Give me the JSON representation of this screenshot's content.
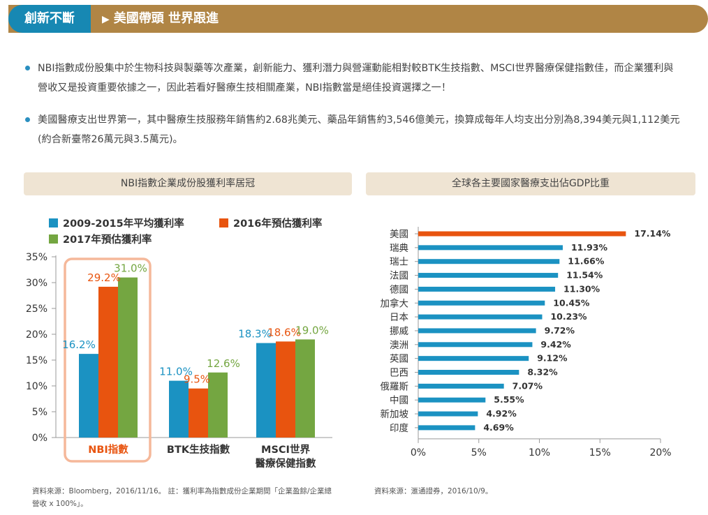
{
  "banner": {
    "tag": "創新不斷",
    "arrow": "▶",
    "title": "美國帶頭 世界跟進"
  },
  "bullets": [
    "NBI指數成份股集中於生物科技與製藥等次產業，創新能力、獲利潛力與營運動能相對較BTK生技指數、MSCI世界醫療保健指數佳，而企業獲利與營收又是投資重要依據之一，因此若看好醫療生技相關產業，NBI指數當是絕佳投資選擇之一！",
    "美國醫療支出世界第一，其中醫療生技服務年銷售約2.68兆美元、藥品年銷售約3,546億美元，換算成每年人均支出分別為8,394美元與1,112美元(約合新臺幣26萬元與3.5萬元)。"
  ],
  "left_section_title": "NBI指數企業成份股獲利率居冠",
  "right_section_title": "全球各主要國家醫療支出佔GDP比重",
  "left_source": "資料來源：Bloomberg，2016/11/16。 註：獲利率為指數成份企業期間「企業盈餘/企業總營收 x 100%」。",
  "right_source": "資料來源：滙通證券，2016/10/9。",
  "chart_data": [
    {
      "type": "bar",
      "categories": [
        "NBI指數",
        "BTK生技指數",
        "MSCI世界醫療保健指數"
      ],
      "category_lines": [
        [
          "NBI指數"
        ],
        [
          "BTK生技指數"
        ],
        [
          "MSCI世界",
          "醫療保健指數"
        ]
      ],
      "series": [
        {
          "name": "2009-2015年平均獲利率",
          "values": [
            16.2,
            11.0,
            18.3
          ],
          "labels": [
            "16.2%",
            "11.0%",
            "18.3%"
          ],
          "color": "#1b92c2"
        },
        {
          "name": "2016年預估獲利率",
          "values": [
            29.2,
            9.5,
            18.6
          ],
          "labels": [
            "29.2%",
            "9.5%",
            "18.6%"
          ],
          "color": "#e8540f"
        },
        {
          "name": "2017年預估獲利率",
          "values": [
            31.0,
            12.6,
            19.0
          ],
          "labels": [
            "31.0%",
            "12.6%",
            "19.0%"
          ],
          "color": "#74a641"
        }
      ],
      "ylim": [
        0,
        35
      ],
      "yticks": [
        "0%",
        "5%",
        "10%",
        "15%",
        "20%",
        "25%",
        "30%",
        "35%"
      ],
      "highlight_category": "NBI指數",
      "highlight_color": "#f5b89a",
      "legend_position": "top-left"
    },
    {
      "type": "bar",
      "orientation": "horizontal",
      "categories": [
        "美國",
        "瑞典",
        "瑞士",
        "法國",
        "德國",
        "加拿大",
        "日本",
        "挪威",
        "澳洲",
        "英國",
        "巴西",
        "俄羅斯",
        "中國",
        "新加坡",
        "印度"
      ],
      "values": [
        17.14,
        11.93,
        11.66,
        11.54,
        11.3,
        10.45,
        10.23,
        9.72,
        9.42,
        9.12,
        8.32,
        7.07,
        5.55,
        4.92,
        4.69
      ],
      "labels": [
        "17.14%",
        "11.93%",
        "11.66%",
        "11.54%",
        "11.30%",
        "10.45%",
        "10.23%",
        "9.72%",
        "9.42%",
        "9.12%",
        "8.32%",
        "7.07%",
        "5.55%",
        "4.92%",
        "4.69%"
      ],
      "xlim": [
        0,
        20
      ],
      "xticks": [
        "0%",
        "5%",
        "10%",
        "15%",
        "20%"
      ],
      "highlight_color": "#e8540f",
      "bar_color": "#1b92c2"
    }
  ]
}
